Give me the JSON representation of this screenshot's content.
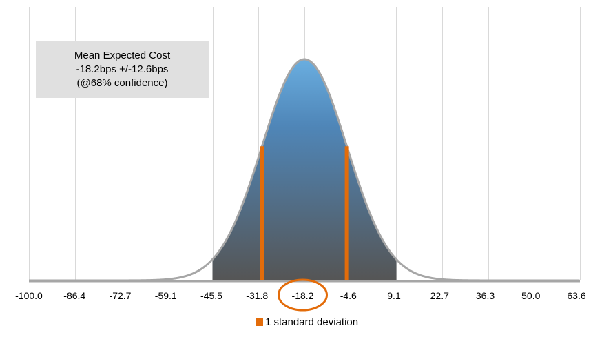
{
  "chart_data": {
    "type": "area",
    "title": "",
    "xlabel": "",
    "ylabel": "",
    "categories": [
      "-100.0",
      "-86.4",
      "-72.7",
      "-59.1",
      "-45.5",
      "-31.8",
      "-18.2",
      "-4.6",
      "9.1",
      "22.7",
      "36.3",
      "50.0",
      "63.6"
    ],
    "distribution": {
      "mean": -18.2,
      "std": 12.6
    },
    "shaded_range": [
      -45.5,
      9.1
    ],
    "std_band": [
      -30.8,
      -5.6
    ],
    "highlighted_tick": "-18.2",
    "xlim": [
      -100.0,
      63.6
    ],
    "grid": "vertical",
    "annotation": {
      "line1": "Mean Expected Cost",
      "line2": "-18.2bps +/-12.6bps",
      "line3": "(@68% confidence)"
    },
    "legend": {
      "label": "1 standard deviation",
      "placement": "bottom"
    },
    "colors": {
      "fill_top": "#6aaee0",
      "fill_bottom": "#555555",
      "curve": "#a6a6a6",
      "std_lines": "#e36c0a",
      "grid": "#d9d9d9",
      "axis": "#a6a6a6",
      "annotation_bg": "#e0e0e0"
    }
  }
}
